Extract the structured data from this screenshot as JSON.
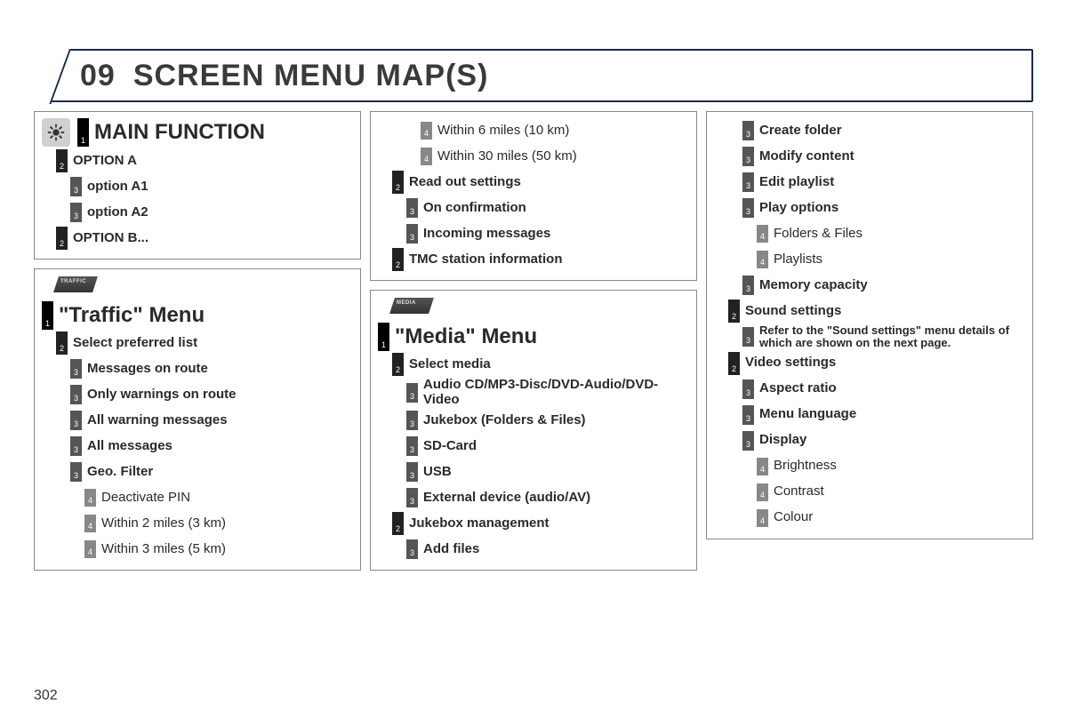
{
  "page_number": "302",
  "header": {
    "number": "09",
    "title": "SCREEN MENU MAP(S)"
  },
  "colors": {
    "border": "#1b2a4a",
    "box_border": "#888888",
    "levels": {
      "1": "#000000",
      "2": "#222222",
      "3": "#555555",
      "4": "#888888"
    },
    "text": "#2a2a2a"
  },
  "columns": [
    {
      "boxes": [
        {
          "icon": "wheel",
          "rows": [
            {
              "level": 1,
              "text": "MAIN FUNCTION",
              "style": "title1"
            },
            {
              "level": 2,
              "text": "OPTION A",
              "style": "bold"
            },
            {
              "level": 3,
              "text": "option A1",
              "style": "bold"
            },
            {
              "level": 3,
              "text": "option A2",
              "style": "bold"
            },
            {
              "level": 2,
              "text": "OPTION B...",
              "style": "bold"
            }
          ]
        },
        {
          "tab": "TRAFFIC",
          "rows": [
            {
              "level": 1,
              "text": "\"Traffic\" Menu",
              "style": "title1"
            },
            {
              "level": 2,
              "text": "Select preferred list",
              "style": "bold"
            },
            {
              "level": 3,
              "text": "Messages on route",
              "style": "bold"
            },
            {
              "level": 3,
              "text": "Only warnings on route",
              "style": "bold"
            },
            {
              "level": 3,
              "text": "All warning messages",
              "style": "bold"
            },
            {
              "level": 3,
              "text": "All messages",
              "style": "bold"
            },
            {
              "level": 3,
              "text": "Geo. Filter",
              "style": "bold"
            },
            {
              "level": 4,
              "text": "Deactivate PIN",
              "style": "light"
            },
            {
              "level": 4,
              "text": "Within 2 miles (3 km)",
              "style": "light"
            },
            {
              "level": 4,
              "text": "Within 3 miles (5 km)",
              "style": "light"
            }
          ]
        }
      ]
    },
    {
      "boxes": [
        {
          "rows": [
            {
              "level": 4,
              "text": "Within 6 miles (10 km)",
              "style": "light"
            },
            {
              "level": 4,
              "text": "Within 30 miles (50 km)",
              "style": "light"
            },
            {
              "level": 2,
              "text": "Read out settings",
              "style": "bold"
            },
            {
              "level": 3,
              "text": "On confirmation",
              "style": "bold"
            },
            {
              "level": 3,
              "text": "Incoming messages",
              "style": "bold"
            },
            {
              "level": 2,
              "text": "TMC station information",
              "style": "bold"
            }
          ]
        },
        {
          "tab": "MEDIA",
          "rows": [
            {
              "level": 1,
              "text": "\"Media\" Menu",
              "style": "title1"
            },
            {
              "level": 2,
              "text": "Select media",
              "style": "bold"
            },
            {
              "level": 3,
              "text": "Audio CD/MP3-Disc/DVD-Audio/DVD-Video",
              "style": "bold"
            },
            {
              "level": 3,
              "text": "Jukebox (Folders & Files)",
              "style": "bold"
            },
            {
              "level": 3,
              "text": "SD-Card",
              "style": "bold"
            },
            {
              "level": 3,
              "text": "USB",
              "style": "bold"
            },
            {
              "level": 3,
              "text": "External device (audio/AV)",
              "style": "bold"
            },
            {
              "level": 2,
              "text": "Jukebox management",
              "style": "bold"
            },
            {
              "level": 3,
              "text": "Add files",
              "style": "bold"
            }
          ]
        }
      ]
    },
    {
      "boxes": [
        {
          "rows": [
            {
              "level": 3,
              "text": "Create folder",
              "style": "bold"
            },
            {
              "level": 3,
              "text": "Modify content",
              "style": "bold"
            },
            {
              "level": 3,
              "text": "Edit playlist",
              "style": "bold"
            },
            {
              "level": 3,
              "text": "Play options",
              "style": "bold"
            },
            {
              "level": 4,
              "text": "Folders & Files",
              "style": "light"
            },
            {
              "level": 4,
              "text": "Playlists",
              "style": "light"
            },
            {
              "level": 3,
              "text": "Memory capacity",
              "style": "bold"
            },
            {
              "level": 2,
              "text": "Sound settings",
              "style": "bold"
            },
            {
              "level": 3,
              "text": "Refer to the \"Sound settings\" menu details of which are shown on the next page.",
              "style": "small"
            },
            {
              "level": 2,
              "text": "Video settings",
              "style": "bold"
            },
            {
              "level": 3,
              "text": "Aspect ratio",
              "style": "bold"
            },
            {
              "level": 3,
              "text": "Menu language",
              "style": "bold"
            },
            {
              "level": 3,
              "text": "Display",
              "style": "bold"
            },
            {
              "level": 4,
              "text": "Brightness",
              "style": "light"
            },
            {
              "level": 4,
              "text": "Contrast",
              "style": "light"
            },
            {
              "level": 4,
              "text": "Colour",
              "style": "light"
            }
          ]
        }
      ]
    }
  ]
}
